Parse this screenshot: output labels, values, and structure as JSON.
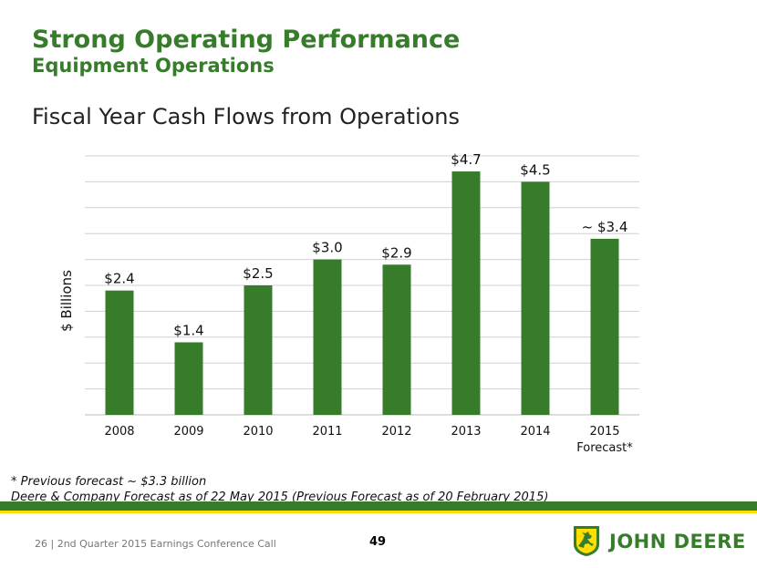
{
  "header": {
    "title": "Strong Operating Performance",
    "subtitle": "Equipment Operations",
    "chart_heading": "Fiscal Year Cash Flows from Operations"
  },
  "chart_data": {
    "type": "bar",
    "title": "Fiscal Year Cash Flows from Operations",
    "ylabel": "$ Billions",
    "xlabel": "",
    "categories": [
      "2008",
      "2009",
      "2010",
      "2011",
      "2012",
      "2013",
      "2014",
      "2015"
    ],
    "category_sublabels": [
      "",
      "",
      "",
      "",
      "",
      "",
      "",
      "Forecast*"
    ],
    "values": [
      2.4,
      1.4,
      2.5,
      3.0,
      2.9,
      4.7,
      4.5,
      3.4
    ],
    "data_labels": [
      "$2.4",
      "$1.4",
      "$2.5",
      "$3.0",
      "$2.9",
      "$4.7",
      "$4.5",
      "~ $3.4"
    ],
    "ylim": [
      0,
      5
    ],
    "grid": true,
    "bar_color": "#367c2b"
  },
  "notes": {
    "line1": "* Previous forecast ~ $3.3 billion",
    "line2": "Deere & Company Forecast as of 22 May 2015 (Previous Forecast as of 20 February 2015)"
  },
  "footer": {
    "text": "26  |  2nd Quarter 2015 Earnings Conference Call",
    "page_number": "49",
    "brand": "JOHN DEERE"
  },
  "colors": {
    "brand_green": "#367c2b",
    "brand_yellow": "#ffde00"
  }
}
